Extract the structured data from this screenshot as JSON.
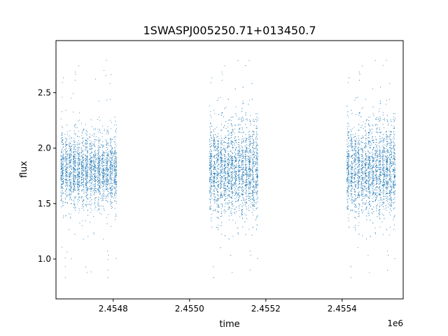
{
  "chart_data": {
    "type": "scatter",
    "title": "1SWASPJ005250.71+013450.7",
    "xlabel": "time",
    "ylabel": "flux",
    "x_offset_label": "1e6",
    "xlim": [
      2.45465,
      2.45556
    ],
    "ylim": [
      0.64,
      2.97
    ],
    "x_ticks": [
      {
        "value": 2.4548,
        "label": "2.4548"
      },
      {
        "value": 2.455,
        "label": "2.4550"
      },
      {
        "value": 2.4552,
        "label": "2.4552"
      },
      {
        "value": 2.4554,
        "label": "2.4554"
      }
    ],
    "y_ticks": [
      {
        "value": 1.0,
        "label": "1.0"
      },
      {
        "value": 1.5,
        "label": "1.5"
      },
      {
        "value": 2.0,
        "label": "2.0"
      },
      {
        "value": 2.5,
        "label": "2.5"
      }
    ],
    "grid": false,
    "marker_color": "#1f77b4",
    "series": [
      {
        "clusters": [
          {
            "x_range": [
              2.45466,
              2.45481
            ],
            "center": 1.8,
            "spread": 0.16,
            "n": 2600
          },
          {
            "x_range": [
              2.45505,
              2.45518
            ],
            "center": 1.8,
            "spread": 0.2,
            "n": 3000
          },
          {
            "x_range": [
              2.45541,
              2.45554
            ],
            "center": 1.8,
            "spread": 0.2,
            "n": 3000
          }
        ]
      }
    ]
  }
}
